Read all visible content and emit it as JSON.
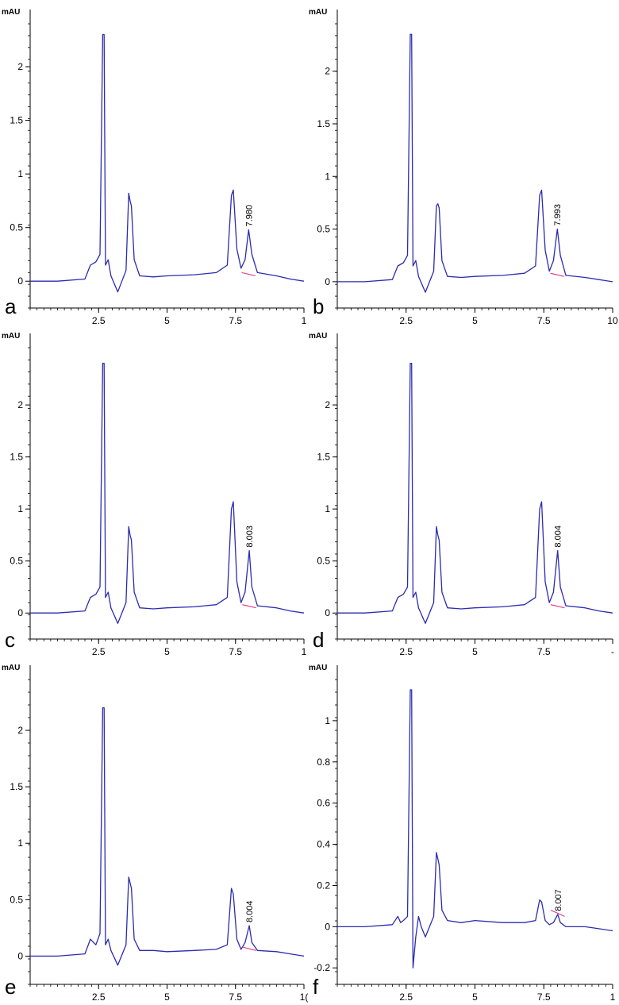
{
  "chart_data": [
    {
      "type": "line",
      "panel_label": "a",
      "ylabel": "mAU",
      "yticks": [
        "0",
        "0.5",
        "1",
        "1.5",
        "2"
      ],
      "xticks": [
        "2.5",
        "5",
        "7.5",
        "1"
      ],
      "xlim": [
        0,
        10
      ],
      "ylim": [
        -0.25,
        2.4
      ],
      "annotation": {
        "text": "7.980",
        "x": 7.98,
        "y": 0.48
      },
      "series": [
        {
          "x": [
            0,
            1,
            2,
            2.2,
            2.4,
            2.55,
            2.65,
            2.7,
            2.75,
            2.85,
            2.95,
            3.2,
            3.5,
            3.6,
            3.65,
            3.7,
            3.8,
            4,
            4.5,
            5,
            6,
            6.8,
            7.2,
            7.35,
            7.42,
            7.55,
            7.7,
            7.85,
            7.98,
            8.1,
            8.3,
            9,
            9.5,
            10
          ],
          "y": [
            0,
            0,
            0.02,
            0.15,
            0.18,
            0.25,
            2.3,
            2.3,
            0.15,
            0.2,
            0.05,
            -0.1,
            0.1,
            0.82,
            0.75,
            0.7,
            0.2,
            0.05,
            0.04,
            0.05,
            0.06,
            0.08,
            0.15,
            0.8,
            0.85,
            0.3,
            0.12,
            0.2,
            0.48,
            0.25,
            0.08,
            0.05,
            0.02,
            0
          ]
        }
      ]
    },
    {
      "type": "line",
      "panel_label": "b",
      "ylabel": "mAU",
      "yticks": [
        "0",
        "0.5",
        "1",
        "1.5",
        "2"
      ],
      "xticks": [
        "2.5",
        "5",
        "7.5",
        "10"
      ],
      "xlim": [
        0,
        10
      ],
      "ylim": [
        -0.25,
        2.45
      ],
      "annotation": {
        "text": "7.993",
        "x": 7.99,
        "y": 0.5
      },
      "series": [
        {
          "x": [
            0,
            1,
            2,
            2.2,
            2.4,
            2.55,
            2.65,
            2.7,
            2.75,
            2.85,
            2.95,
            3.2,
            3.5,
            3.6,
            3.65,
            3.7,
            3.8,
            4,
            4.5,
            5,
            6,
            6.8,
            7.2,
            7.35,
            7.42,
            7.55,
            7.7,
            7.85,
            7.99,
            8.1,
            8.3,
            9,
            9.5,
            10
          ],
          "y": [
            0,
            0,
            0.02,
            0.15,
            0.18,
            0.25,
            2.35,
            2.35,
            0.15,
            0.2,
            0.05,
            -0.1,
            0.1,
            0.72,
            0.74,
            0.7,
            0.2,
            0.05,
            0.04,
            0.05,
            0.06,
            0.08,
            0.15,
            0.82,
            0.87,
            0.3,
            0.1,
            0.2,
            0.5,
            0.25,
            0.06,
            0.04,
            0.02,
            0
          ]
        }
      ]
    },
    {
      "type": "line",
      "panel_label": "c",
      "ylabel": "mAU",
      "yticks": [
        "0",
        "0.5",
        "1",
        "1.5",
        "2"
      ],
      "xticks": [
        "2.5",
        "5",
        "7.5",
        "1"
      ],
      "xlim": [
        0,
        10
      ],
      "ylim": [
        -0.25,
        2.55
      ],
      "annotation": {
        "text": "8.003",
        "x": 8.003,
        "y": 0.6
      },
      "series": [
        {
          "x": [
            0,
            1,
            2,
            2.2,
            2.4,
            2.55,
            2.65,
            2.7,
            2.75,
            2.85,
            2.95,
            3.2,
            3.5,
            3.6,
            3.65,
            3.7,
            3.8,
            4,
            4.5,
            5,
            6,
            6.8,
            7.2,
            7.35,
            7.42,
            7.55,
            7.7,
            7.85,
            8.003,
            8.1,
            8.3,
            9,
            9.5,
            10
          ],
          "y": [
            0,
            0,
            0.02,
            0.15,
            0.18,
            0.25,
            2.4,
            2.4,
            0.15,
            0.2,
            0.05,
            -0.1,
            0.1,
            0.83,
            0.75,
            0.7,
            0.2,
            0.05,
            0.04,
            0.05,
            0.06,
            0.08,
            0.15,
            1.0,
            1.07,
            0.3,
            0.1,
            0.2,
            0.6,
            0.25,
            0.07,
            0.05,
            0.02,
            0
          ]
        }
      ]
    },
    {
      "type": "line",
      "panel_label": "d",
      "ylabel": "mAU",
      "yticks": [
        "0",
        "0.5",
        "1",
        "1.5",
        "2"
      ],
      "xticks": [
        "2.5",
        "5",
        "7.5",
        "-"
      ],
      "xlim": [
        0,
        10
      ],
      "ylim": [
        -0.25,
        2.55
      ],
      "annotation": {
        "text": "8.004",
        "x": 8.004,
        "y": 0.6
      },
      "series": [
        {
          "x": [
            0,
            1,
            2,
            2.2,
            2.4,
            2.55,
            2.65,
            2.7,
            2.75,
            2.85,
            2.95,
            3.2,
            3.5,
            3.6,
            3.65,
            3.7,
            3.8,
            4,
            4.5,
            5,
            6,
            6.8,
            7.2,
            7.35,
            7.42,
            7.55,
            7.7,
            7.85,
            8.004,
            8.1,
            8.3,
            9,
            9.5,
            10
          ],
          "y": [
            0,
            0,
            0.02,
            0.15,
            0.18,
            0.25,
            2.4,
            2.4,
            0.15,
            0.2,
            0.05,
            -0.1,
            0.1,
            0.83,
            0.75,
            0.7,
            0.2,
            0.05,
            0.04,
            0.05,
            0.06,
            0.08,
            0.15,
            1.0,
            1.07,
            0.3,
            0.1,
            0.2,
            0.6,
            0.25,
            0.07,
            0.05,
            0.02,
            0
          ]
        }
      ]
    },
    {
      "type": "line",
      "panel_label": "e",
      "ylabel": "mAU",
      "yticks": [
        "0",
        "0.5",
        "1",
        "1.5",
        "2"
      ],
      "xticks": [
        "2.5",
        "5",
        "7.5",
        "1("
      ],
      "xlim": [
        0,
        10
      ],
      "ylim": [
        -0.25,
        2.45
      ],
      "annotation": {
        "text": "8.004",
        "x": 8.004,
        "y": 0.27
      },
      "series": [
        {
          "x": [
            0,
            1,
            2,
            2.2,
            2.4,
            2.55,
            2.65,
            2.7,
            2.75,
            2.85,
            2.95,
            3.2,
            3.5,
            3.6,
            3.65,
            3.7,
            3.8,
            4,
            4.5,
            5,
            6,
            6.8,
            7.2,
            7.35,
            7.42,
            7.55,
            7.7,
            7.85,
            8.004,
            8.1,
            8.3,
            9,
            9.5,
            10
          ],
          "y": [
            0,
            0,
            0.02,
            0.15,
            0.1,
            0.2,
            2.2,
            2.2,
            0.1,
            0.15,
            0.05,
            -0.08,
            0.1,
            0.7,
            0.65,
            0.6,
            0.15,
            0.05,
            0.05,
            0.04,
            0.05,
            0.06,
            0.1,
            0.6,
            0.55,
            0.15,
            0.06,
            0.12,
            0.27,
            0.12,
            0.05,
            0.04,
            0.02,
            0
          ]
        }
      ]
    },
    {
      "type": "line",
      "panel_label": "f",
      "ylabel": "mAU",
      "yticks": [
        "-0.2",
        "0",
        "0.2",
        "0.4",
        "0.6",
        "0.8",
        "1"
      ],
      "xticks": [
        "2.5",
        "5",
        "7.5",
        "1"
      ],
      "xlim": [
        0,
        10
      ],
      "ylim": [
        -0.28,
        1.2
      ],
      "annotation": {
        "text": "8.007",
        "x": 8.007,
        "y": 0.06
      },
      "series": [
        {
          "x": [
            0,
            1,
            2,
            2.2,
            2.3,
            2.4,
            2.55,
            2.65,
            2.7,
            2.75,
            2.85,
            2.95,
            3.05,
            3.2,
            3.5,
            3.6,
            3.65,
            3.7,
            3.8,
            4,
            4.5,
            5,
            6,
            6.8,
            7.2,
            7.35,
            7.42,
            7.55,
            7.7,
            7.85,
            8.007,
            8.1,
            8.3,
            9,
            9.5,
            10
          ],
          "y": [
            0,
            0,
            0.01,
            0.05,
            0.02,
            0.03,
            0.05,
            1.15,
            1.15,
            -0.2,
            -0.05,
            0.05,
            0.0,
            -0.05,
            0.05,
            0.36,
            0.33,
            0.3,
            0.08,
            0.03,
            0.02,
            0.03,
            0.02,
            0.02,
            0.03,
            0.13,
            0.12,
            0.03,
            0.01,
            0.02,
            0.06,
            0.02,
            0.0,
            0.0,
            -0.01,
            -0.02
          ]
        }
      ]
    }
  ],
  "colors": {
    "trace": "#2b2bb0",
    "baseline": "#e04090",
    "axis": "#000000"
  }
}
